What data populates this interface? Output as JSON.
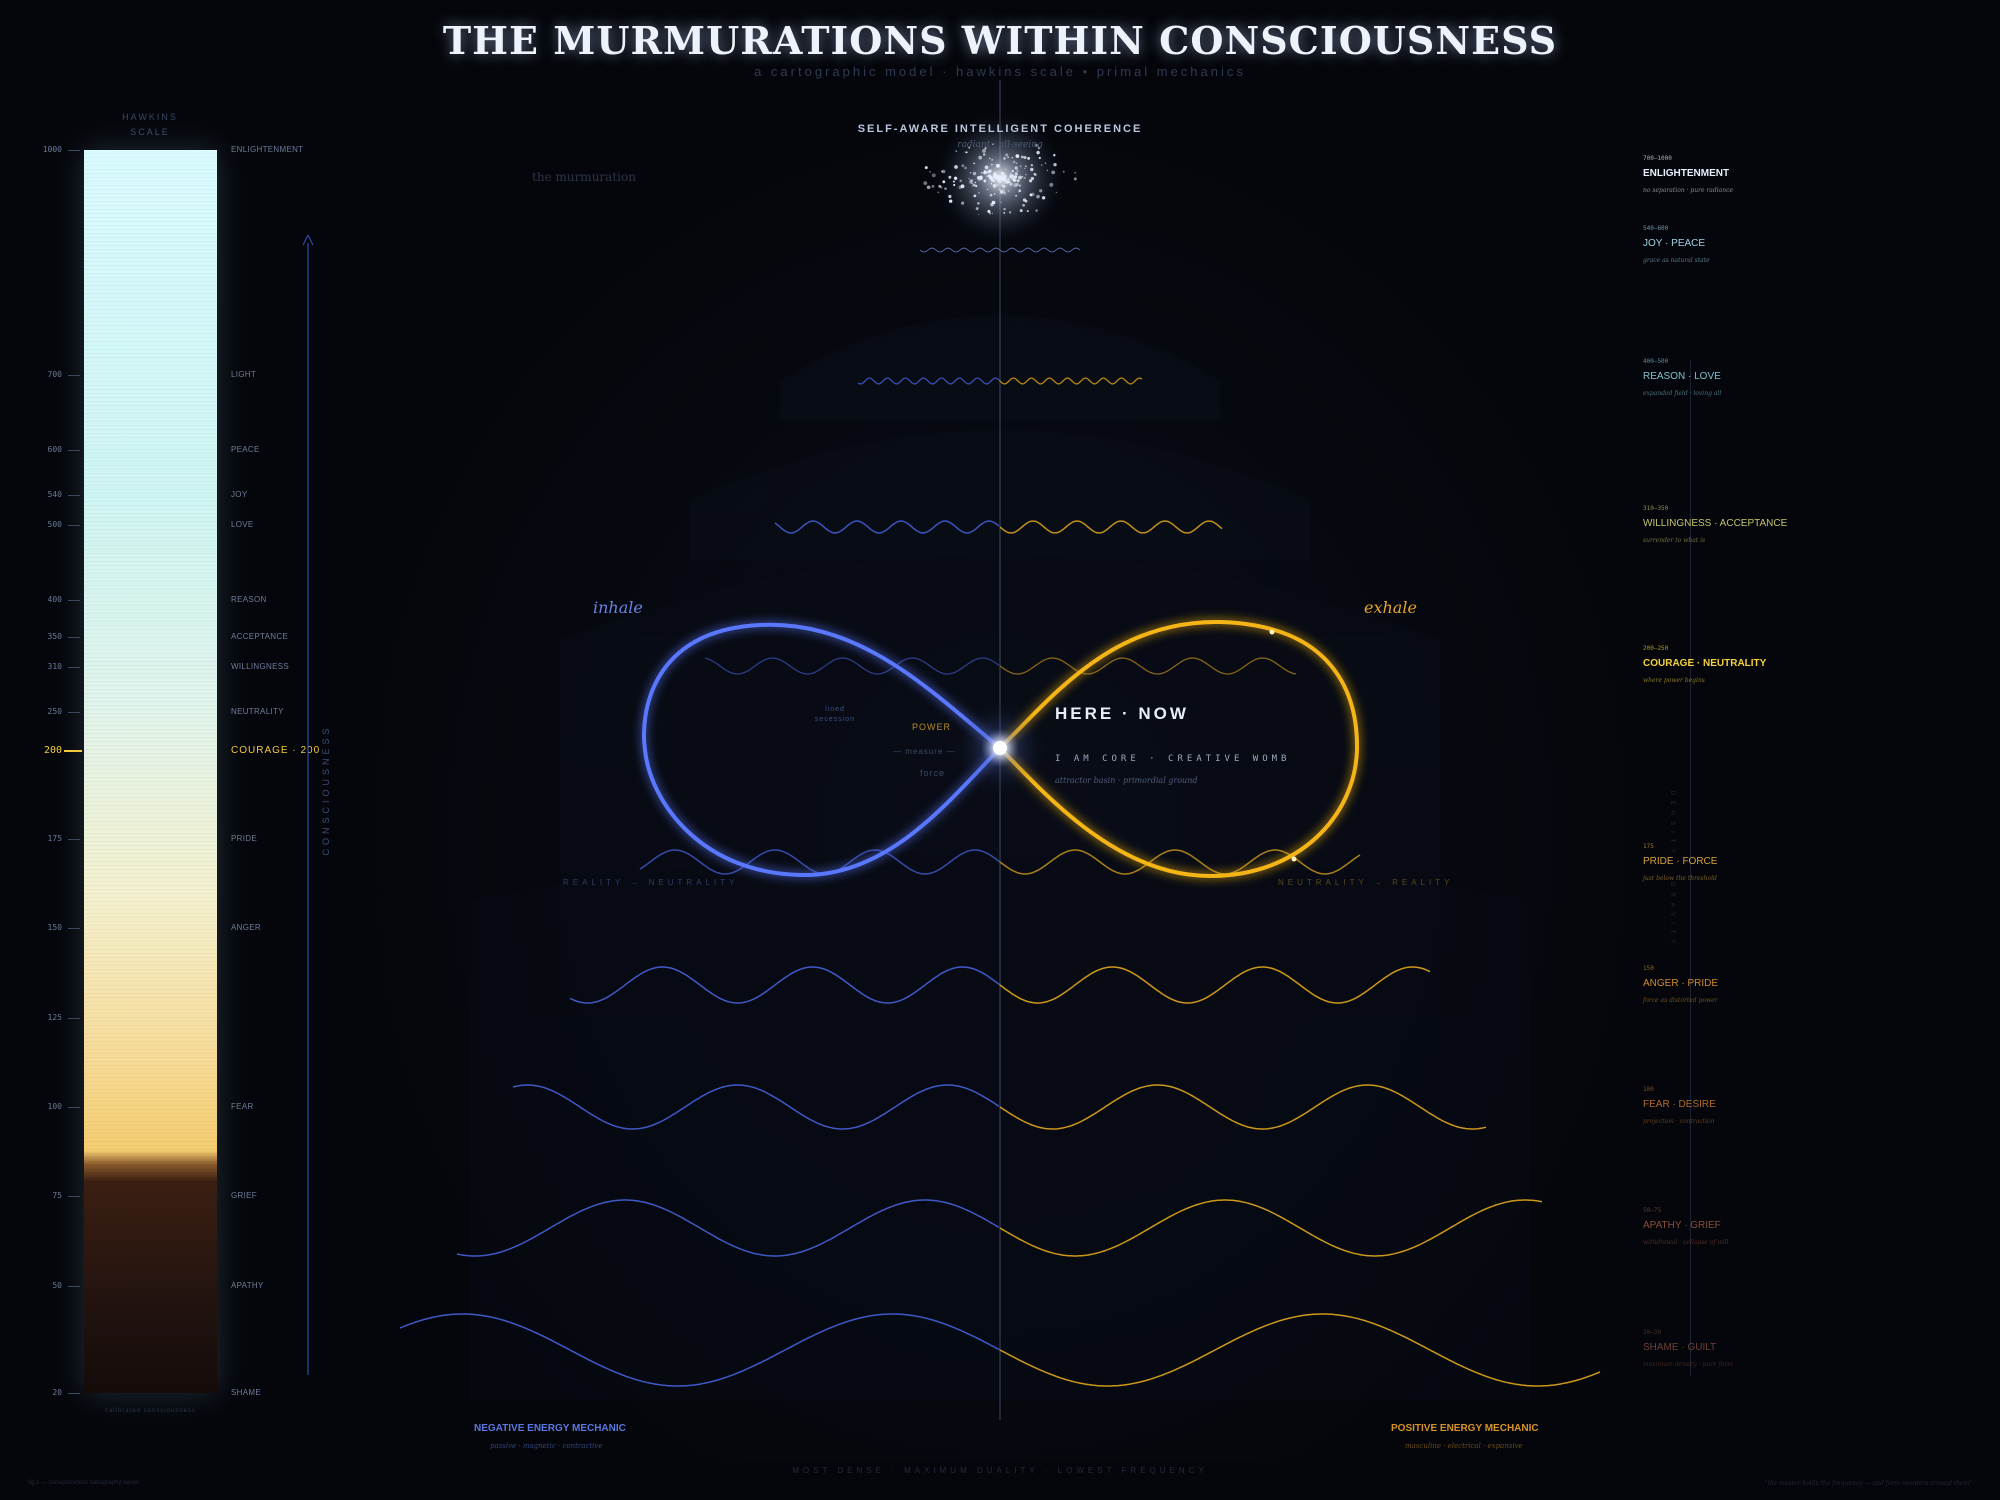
{
  "title": "THE MURMURATIONS WITHIN CONSCIOUSNESS",
  "subtitle": "a cartographic model · hawkins scale • primal mechanics",
  "hawkins_header": [
    "HAWKINS",
    "SCALE"
  ],
  "axis_label": "CONSCIOUSNESS",
  "under_bar_text": "calibrated consciousness",
  "hawkins_scale": [
    {
      "value": "1000",
      "label": "ENLIGHTENMENT"
    },
    {
      "value": "700",
      "label": "LIGHT"
    },
    {
      "value": "600",
      "label": "PEACE"
    },
    {
      "value": "540",
      "label": "JOY"
    },
    {
      "value": "500",
      "label": "LOVE"
    },
    {
      "value": "400",
      "label": "REASON"
    },
    {
      "value": "350",
      "label": "ACCEPTANCE"
    },
    {
      "value": "310",
      "label": "WILLINGNESS"
    },
    {
      "value": "250",
      "label": "NEUTRALITY"
    },
    {
      "value": "200",
      "label": "COURAGE · 200",
      "highlight": true
    },
    {
      "value": "175",
      "label": "PRIDE"
    },
    {
      "value": "150",
      "label": "ANGER"
    },
    {
      "value": "125",
      "label": ""
    },
    {
      "value": "100",
      "label": "FEAR"
    },
    {
      "value": "75",
      "label": "GRIEF"
    },
    {
      "value": "50",
      "label": "APATHY"
    },
    {
      "value": "20",
      "label": "SHAME"
    }
  ],
  "apex": {
    "title": "SELF-AWARE INTELLIGENT COHERENCE",
    "sub": "radiant · all-seeing"
  },
  "murmuration_label": "the murmuration",
  "center": {
    "inhale": "inhale",
    "exhale": "exhale",
    "here_now": "HERE · NOW",
    "iam": "I AM CORE  ·  CREATIVE WOMB",
    "attractor": "attractor basin · primordial ground",
    "power": "POWER",
    "measure": "— measure —",
    "force": "force",
    "lined": [
      "lined",
      "secession"
    ],
    "reality_left": "REALITY → NEUTRALITY",
    "reality_right": "NEUTRALITY → REALITY"
  },
  "mechanics": {
    "negative": {
      "title": "NEGATIVE ENERGY MECHANIC",
      "sub": "passive · magnetic · contractive"
    },
    "positive": {
      "title": "POSITIVE ENERGY MECHANIC",
      "sub": "masculine · electrical · expansive"
    }
  },
  "bottom_line": "MOST DENSE  ·  MAXIMUM DUALITY  ·  LOWEST FREQUENCY",
  "fig_left": "fig.1 — consciousness cartography series",
  "fig_right": "\"the master holds the frequency — and form reorders around them\"",
  "right_axis_label": "DENSITY · GRAVITY",
  "right_levels": [
    {
      "range": "700–1000",
      "name": "ENLIGHTENMENT",
      "desc": "no separation · pure radiance",
      "color": "#e8eefb"
    },
    {
      "range": "540–600",
      "name": "JOY · PEACE",
      "desc": "grace as natural state",
      "color": "#9fd2e6"
    },
    {
      "range": "400–500",
      "name": "REASON · LOVE",
      "desc": "expanded field · loving all",
      "color": "#7fc2cf"
    },
    {
      "range": "310–350",
      "name": "WILLINGNESS · ACCEPTANCE",
      "desc": "surrender to what is",
      "color": "#c6c46a"
    },
    {
      "range": "200–250",
      "name": "COURAGE · NEUTRALITY",
      "desc": "where power begins",
      "color": "#f4d23c"
    },
    {
      "range": "175",
      "name": "PRIDE · FORCE",
      "desc": "just below the threshold",
      "color": "#d7a23a"
    },
    {
      "range": "150",
      "name": "ANGER · PRIDE",
      "desc": "force as distorted power",
      "color": "#cf8a2c"
    },
    {
      "range": "100",
      "name": "FEAR · DESIRE",
      "desc": "projection · contraction",
      "color": "#b06a28"
    },
    {
      "range": "50–75",
      "name": "APATHY · GRIEF",
      "desc": "withdrawal · collapse of will",
      "color": "#8a4e3c"
    },
    {
      "range": "20–30",
      "name": "SHAME · GUILT",
      "desc": "maximum density · pure form",
      "color": "#6e4038"
    }
  ],
  "colors": {
    "negative": "#4a67e8",
    "positive": "#f0b21c",
    "highlight": "#f4c93e"
  }
}
